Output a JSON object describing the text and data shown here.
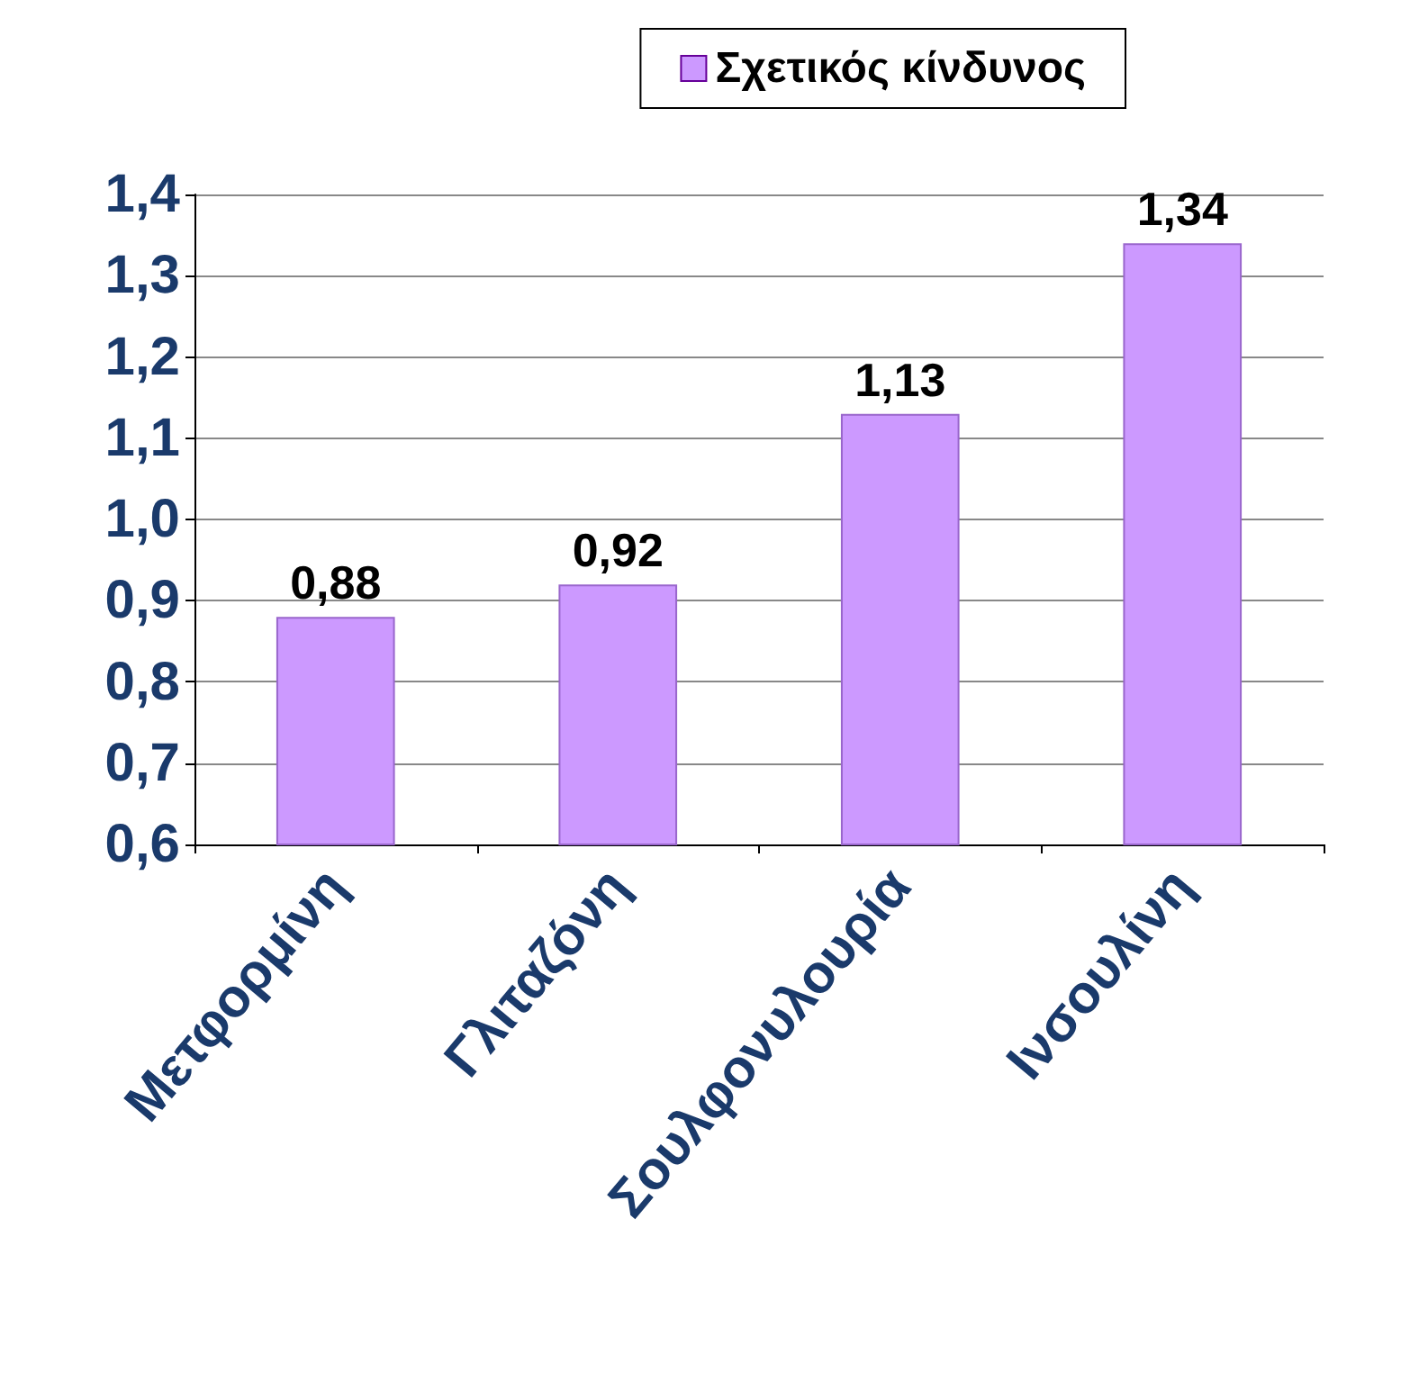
{
  "chart_data": {
    "type": "bar",
    "categories": [
      "Μετφορμίνη",
      "Γλιταζόνη",
      "Σουλφονυλουρία",
      "Ινσουλίνη"
    ],
    "series": [
      {
        "name": "Σχετικός κίνδυνος",
        "color": "#cc99ff",
        "values": [
          0.88,
          0.92,
          1.13,
          1.34
        ],
        "value_labels": [
          "0,88",
          "0,92",
          "1,13",
          "1,34"
        ]
      }
    ],
    "ylim": [
      0.6,
      1.4
    ],
    "yticks": [
      {
        "value": 0.6,
        "label": "0,6"
      },
      {
        "value": 0.7,
        "label": "0,7"
      },
      {
        "value": 0.8,
        "label": "0,8"
      },
      {
        "value": 0.9,
        "label": "0,9"
      },
      {
        "value": 1.0,
        "label": "1,0"
      },
      {
        "value": 1.1,
        "label": "1,1"
      },
      {
        "value": 1.2,
        "label": "1,2"
      },
      {
        "value": 1.3,
        "label": "1,3"
      },
      {
        "value": 1.4,
        "label": "1,4"
      }
    ],
    "grid": "y",
    "legend": "top right"
  }
}
